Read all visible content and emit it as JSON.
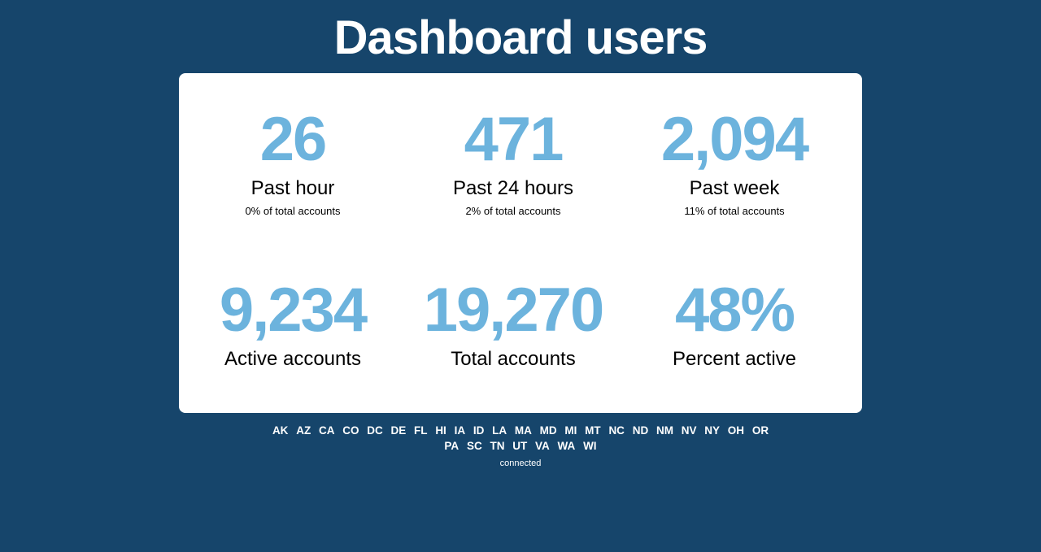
{
  "header": {
    "title": "Dashboard users"
  },
  "stats": [
    {
      "value": "26",
      "label": "Past hour",
      "sub": "0% of total accounts"
    },
    {
      "value": "471",
      "label": "Past 24 hours",
      "sub": "2% of total accounts"
    },
    {
      "value": "2,094",
      "label": "Past week",
      "sub": "11% of total accounts"
    },
    {
      "value": "9,234",
      "label": "Active accounts"
    },
    {
      "value": "19,270",
      "label": "Total accounts"
    },
    {
      "value": "48%",
      "label": "Percent active"
    }
  ],
  "states": [
    "AK",
    "AZ",
    "CA",
    "CO",
    "DC",
    "DE",
    "FL",
    "HI",
    "IA",
    "ID",
    "LA",
    "MA",
    "MD",
    "MI",
    "MT",
    "NC",
    "ND",
    "NM",
    "NV",
    "NY",
    "OH",
    "OR",
    "PA",
    "SC",
    "TN",
    "UT",
    "VA",
    "WA",
    "WI"
  ],
  "status": "connected",
  "colors": {
    "background": "#16456b",
    "card": "#ffffff",
    "accent": "#6cb3dd"
  }
}
